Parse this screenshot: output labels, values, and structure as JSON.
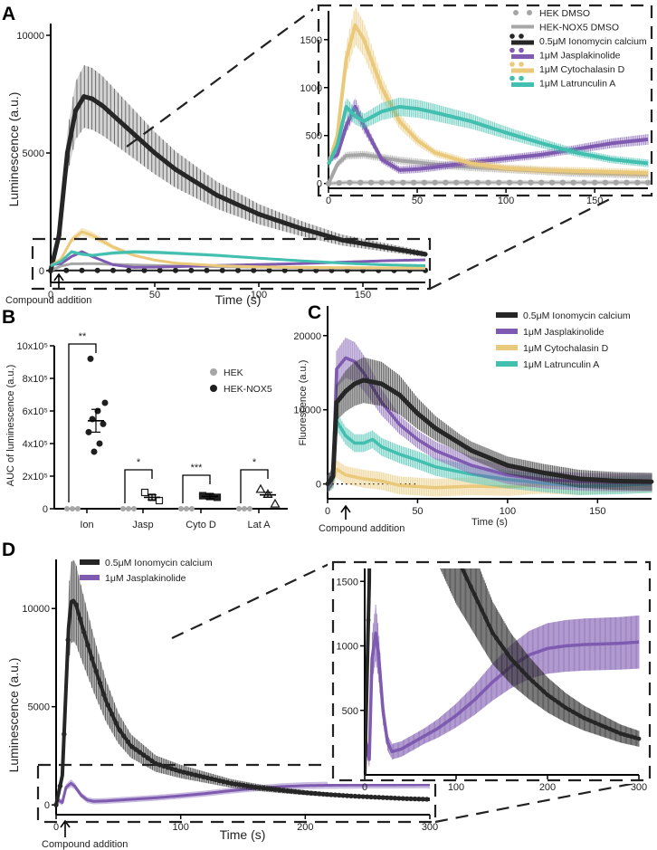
{
  "panel_letters": [
    "A",
    "B",
    "C",
    "D"
  ],
  "colors": {
    "HEK": "#a6a6a6",
    "NOX5": "#1f1f1f",
    "Iono": "#262626",
    "Jasp": "#7e5bb0",
    "CytoD": "#eac97a",
    "LatA": "#43bfb0"
  },
  "chart_data": [
    {
      "id": "A",
      "type": "line",
      "title": "",
      "xlabel": "Time (s)",
      "ylabel": "Luminescence (a.u.)",
      "xlim": [
        0,
        180
      ],
      "ylim": [
        -500,
        10500
      ],
      "xticks": [
        0,
        50,
        100,
        150
      ],
      "yticks": [
        0,
        5000,
        10000
      ],
      "xtick_labels": [
        "0",
        "50",
        "100",
        "150"
      ],
      "ytick_labels": [
        "0",
        "5000",
        "10000"
      ],
      "annotation": "Compound addition",
      "inset": {
        "xlim": [
          0,
          180
        ],
        "ylim": [
          -50,
          1800
        ],
        "xticks": [
          0,
          50,
          100,
          150
        ],
        "yticks": [
          0,
          500,
          1000,
          1500
        ],
        "xtick_labels": [
          "0",
          "50",
          "100",
          "150"
        ],
        "ytick_labels": [
          "0",
          "500",
          "1000",
          "1500"
        ]
      },
      "legend": [
        "HEK DMSO",
        "HEK-NOX5 DMSO",
        "0.5μM Ionomycin calcium",
        "1μM Jasplakinolide",
        "1μM Cytochalasin D",
        "1μM Latrunculin A"
      ],
      "series": [
        {
          "name": "HEK DMSO",
          "x": [
            0,
            5,
            10,
            20,
            40,
            60,
            80,
            100,
            120,
            140,
            160,
            180
          ],
          "values": [
            0,
            5,
            10,
            10,
            10,
            10,
            10,
            10,
            10,
            10,
            10,
            10
          ]
        },
        {
          "name": "HEK-NOX5 DMSO",
          "x": [
            0,
            5,
            10,
            20,
            40,
            60,
            80,
            100,
            120,
            140,
            160,
            180
          ],
          "values": [
            0,
            200,
            290,
            300,
            240,
            200,
            170,
            150,
            130,
            110,
            100,
            90
          ]
        },
        {
          "name": "0.5μM Ionomycin calcium",
          "x": [
            0,
            4,
            8,
            12,
            16,
            20,
            25,
            30,
            40,
            50,
            60,
            80,
            100,
            120,
            140,
            160,
            180
          ],
          "values": [
            0,
            1500,
            5000,
            6800,
            7400,
            7300,
            7000,
            6600,
            5800,
            5000,
            4300,
            3200,
            2400,
            1800,
            1300,
            1000,
            700
          ]
        },
        {
          "name": "1μM Jasplakinolide",
          "x": [
            0,
            5,
            10,
            15,
            20,
            30,
            40,
            50,
            60,
            80,
            100,
            120,
            140,
            160,
            180
          ],
          "values": [
            250,
            300,
            600,
            800,
            600,
            250,
            140,
            150,
            170,
            220,
            260,
            300,
            360,
            420,
            460
          ]
        },
        {
          "name": "1μM Cytochalasin D",
          "x": [
            0,
            5,
            10,
            15,
            20,
            30,
            40,
            50,
            60,
            80,
            100,
            120,
            140,
            160,
            180
          ],
          "values": [
            200,
            500,
            1300,
            1650,
            1500,
            1000,
            650,
            450,
            320,
            210,
            160,
            140,
            130,
            120,
            110
          ]
        },
        {
          "name": "1μM Latrunculin A",
          "x": [
            0,
            5,
            10,
            15,
            20,
            30,
            40,
            50,
            60,
            80,
            100,
            120,
            140,
            160,
            180
          ],
          "values": [
            200,
            400,
            800,
            700,
            650,
            750,
            800,
            780,
            740,
            650,
            530,
            420,
            320,
            250,
            210
          ]
        }
      ]
    },
    {
      "id": "B",
      "type": "scatter",
      "title": "",
      "xlabel": "",
      "ylabel": "AUC of luminescence (a.u.)",
      "ylim": [
        0,
        1000000
      ],
      "yticks": [
        0,
        200000,
        400000,
        600000,
        800000,
        1000000
      ],
      "ytick_labels": [
        "0",
        "2x10⁵",
        "4x10⁵",
        "6x10⁵",
        "8x10⁵",
        "10x10⁵"
      ],
      "categories": [
        "Ion",
        "Jasp",
        "Cyto D",
        "Lat A"
      ],
      "legend": [
        "HEK",
        "HEK-NOX5"
      ],
      "significance": [
        "**",
        "*",
        "***",
        "*"
      ],
      "series": [
        {
          "name": "HEK",
          "points": [
            [
              0,
              [
                0,
                0,
                0
              ]
            ],
            [
              1,
              [
                0,
                0,
                0
              ]
            ],
            [
              2,
              [
                0,
                0,
                0
              ]
            ],
            [
              3,
              [
                0,
                0,
                0
              ]
            ]
          ]
        },
        {
          "name": "HEK-NOX5",
          "points": [
            [
              0,
              [
                920000,
                650000,
                600000,
                550000,
                520000,
                470000,
                400000,
                350000
              ]
            ],
            [
              1,
              [
                100000,
                70000,
                50000
              ]
            ],
            [
              2,
              [
                80000,
                75000,
                70000
              ]
            ],
            [
              3,
              [
                120000,
                90000,
                30000
              ]
            ]
          ],
          "means": [
            540000,
            70000,
            75000,
            85000
          ]
        }
      ]
    },
    {
      "id": "C",
      "type": "line",
      "title": "",
      "xlabel": "Time (s)",
      "ylabel": "Fluorescence (a.u.)",
      "xlim": [
        0,
        180
      ],
      "ylim": [
        -2000,
        24000
      ],
      "xticks": [
        0,
        50,
        100,
        150
      ],
      "yticks": [
        0,
        10000,
        20000
      ],
      "xtick_labels": [
        "0",
        "50",
        "100",
        "150"
      ],
      "ytick_labels": [
        "0",
        "10000",
        "20000"
      ],
      "annotation": "Compound addition",
      "legend": [
        "0.5μM Ionomycin calcium",
        "1μM Jasplakinolide",
        "1μM Cytochalasin D",
        "1μM Latrunculin A"
      ],
      "series": [
        {
          "name": "0.5μM Ionomycin calcium",
          "x": [
            0,
            3,
            5,
            10,
            15,
            20,
            30,
            40,
            50,
            60,
            80,
            100,
            120,
            140,
            160,
            180
          ],
          "values": [
            0,
            1000,
            11000,
            12500,
            13500,
            14000,
            13500,
            12000,
            9500,
            7500,
            4500,
            2500,
            1500,
            700,
            400,
            300
          ]
        },
        {
          "name": "1μM Jasplakinolide",
          "x": [
            0,
            3,
            5,
            10,
            15,
            20,
            30,
            40,
            50,
            60,
            80,
            100,
            120,
            140,
            160,
            180
          ],
          "values": [
            0,
            1000,
            15500,
            17000,
            16500,
            15000,
            11000,
            8000,
            6000,
            4500,
            2500,
            1200,
            600,
            300,
            200,
            200
          ]
        },
        {
          "name": "1μM Cytochalasin D",
          "x": [
            0,
            3,
            5,
            10,
            20,
            30,
            40,
            60,
            80,
            100,
            120,
            140,
            160,
            180
          ],
          "values": [
            0,
            600,
            2000,
            1200,
            700,
            400,
            -200,
            -500,
            -300,
            -400,
            -100,
            -300,
            0,
            0
          ]
        },
        {
          "name": "1μM Latrunculin A",
          "x": [
            0,
            3,
            5,
            10,
            15,
            20,
            25,
            30,
            40,
            50,
            60,
            80,
            100,
            120,
            140,
            160,
            180
          ],
          "values": [
            0,
            600,
            8500,
            6500,
            5500,
            5500,
            6000,
            5000,
            4000,
            3200,
            2300,
            1300,
            600,
            100,
            -300,
            -200,
            0
          ]
        }
      ]
    },
    {
      "id": "D",
      "type": "line",
      "title": "",
      "xlabel": "Time (s)",
      "ylabel": "Luminescence (a.u.)",
      "xlim": [
        0,
        300
      ],
      "ylim": [
        -500,
        12500
      ],
      "xticks": [
        0,
        100,
        200,
        300
      ],
      "yticks": [
        0,
        5000,
        10000
      ],
      "xtick_labels": [
        "0",
        "100",
        "200",
        "300"
      ],
      "ytick_labels": [
        "0",
        "5000",
        "10000"
      ],
      "annotation": "Compound addition",
      "inset": {
        "xlim": [
          0,
          300
        ],
        "ylim": [
          0,
          1600
        ],
        "xticks": [
          0,
          100,
          200,
          300
        ],
        "yticks": [
          500,
          1000,
          1500
        ],
        "xtick_labels": [
          "0",
          "100",
          "200",
          "300"
        ],
        "ytick_labels": [
          "500",
          "1000",
          "1500"
        ]
      },
      "legend": [
        "0.5μM Ionomycin calcium",
        "1μM Jasplakinolide"
      ],
      "series": [
        {
          "name": "0.5μM Ionomycin calcium",
          "x": [
            0,
            5,
            8,
            10,
            12,
            14,
            16,
            20,
            30,
            40,
            50,
            60,
            80,
            100,
            120,
            140,
            160,
            180,
            200,
            220,
            240,
            260,
            280,
            300
          ],
          "values": [
            0,
            1500,
            6000,
            9000,
            10300,
            10400,
            10200,
            9300,
            7200,
            5300,
            3900,
            3000,
            2100,
            1700,
            1400,
            1100,
            900,
            750,
            620,
            520,
            440,
            380,
            320,
            280
          ]
        },
        {
          "name": "1μM Jasplakinolide",
          "x": [
            0,
            5,
            8,
            12,
            15,
            20,
            25,
            30,
            40,
            60,
            80,
            100,
            120,
            140,
            160,
            180,
            200,
            220,
            240,
            260,
            280,
            300
          ],
          "values": [
            300,
            120,
            900,
            1100,
            950,
            500,
            250,
            180,
            200,
            280,
            360,
            460,
            580,
            720,
            840,
            930,
            980,
            1000,
            1010,
            1015,
            1020,
            1030
          ]
        }
      ]
    }
  ]
}
